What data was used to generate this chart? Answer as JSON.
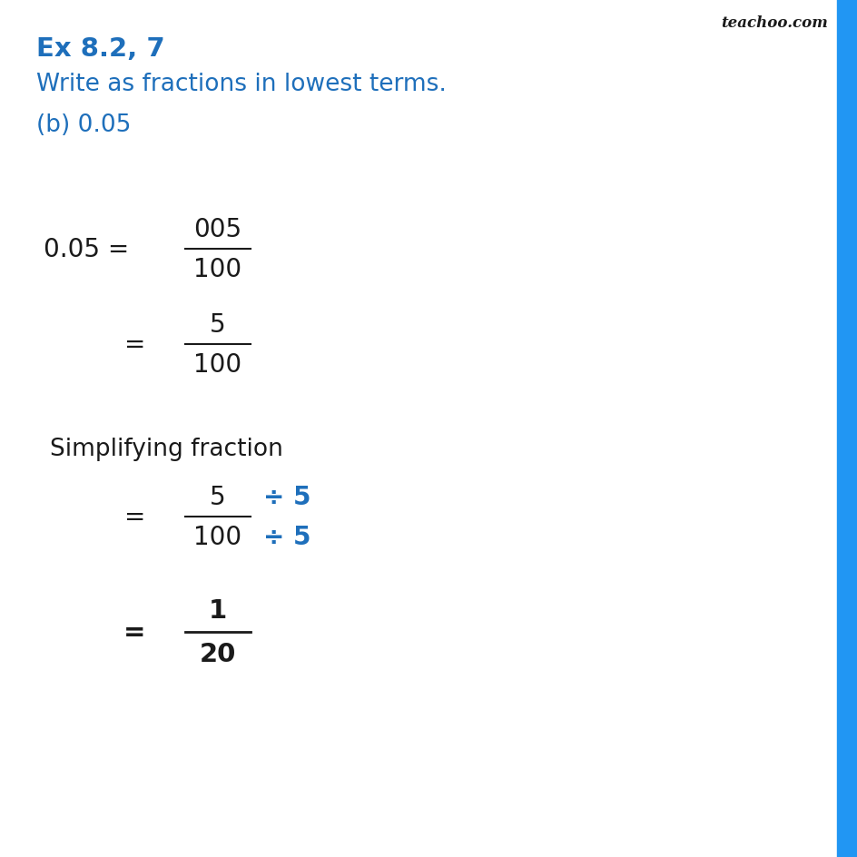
{
  "bg_color": "#ffffff",
  "blue_color": "#1e6fbb",
  "black": "#1a1a1a",
  "title": "Ex 8.2, 7",
  "subtitle": "Write as fractions in lowest terms.",
  "part_label": "(b) 0.05",
  "teachoo_text": "teachoo.com",
  "right_bar_color": "#2196F3",
  "figsize": [
    9.45,
    9.45
  ],
  "dpi": 100
}
